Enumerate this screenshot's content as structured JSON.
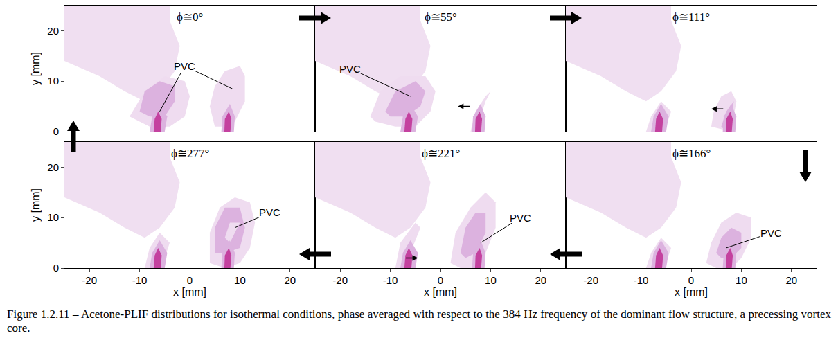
{
  "chart_data": {
    "type": "contour",
    "xlabel": "x [mm]",
    "ylabel": "y [mm]",
    "xlim": [
      -25,
      25
    ],
    "ylim": [
      0,
      25
    ],
    "xticks": [
      -20,
      -10,
      0,
      10,
      20
    ],
    "yticks": [
      0,
      10,
      20
    ],
    "caption": "Figure 1.2.11 – Acetone-PLIF distributions for isothermal conditions, phase averaged with respect to the 384 Hz frequency of the dominant flow structure, a precessing vortex core.",
    "background_regions": [
      {
        "color": "#f0dff1",
        "x": [
          -25,
          -4,
          -4,
          -2,
          -3,
          -6,
          -9,
          -13,
          -18,
          -25
        ],
        "y": [
          25,
          25,
          22,
          17,
          12,
          8,
          6,
          8,
          11,
          14
        ]
      }
    ],
    "nozzle_regions": [
      {
        "color": "#dcb2df",
        "x": [
          -8,
          -5,
          -4.5,
          -6,
          -7.5
        ],
        "y": [
          0,
          0,
          3,
          5.5,
          3
        ]
      },
      {
        "color": "#dcb2df",
        "x": [
          6.3,
          8.8,
          9,
          8,
          6.5
        ],
        "y": [
          0,
          0,
          3,
          5.5,
          3
        ]
      },
      {
        "color": "#c4419f",
        "x": [
          -7.2,
          -5.8,
          -5.6,
          -6.3,
          -7.0
        ],
        "y": [
          0,
          0,
          2.5,
          4,
          2.5
        ]
      },
      {
        "color": "#c4419f",
        "x": [
          6.9,
          8.1,
          8.3,
          7.8,
          7.0
        ],
        "y": [
          0,
          0,
          2.5,
          4,
          2.5
        ]
      }
    ],
    "panels": [
      {
        "title": "ϕ≅0°",
        "regions": [
          {
            "color": "#efdcf0",
            "x": [
              -12,
              -9,
              -5,
              -1,
              0,
              -1,
              -4,
              -8,
              -12
            ],
            "y": [
              3,
              8,
              11,
              10,
              7,
              3,
              1,
              1,
              3
            ]
          },
          {
            "color": "#efdcf0",
            "x": [
              5,
              4,
              5,
              7,
              10,
              11,
              11,
              9,
              7
            ],
            "y": [
              1,
              5,
              9,
              12,
              13,
              11,
              6,
              2,
              1
            ]
          },
          {
            "color": "#dcb2df",
            "x": [
              -10,
              -9,
              -6,
              -3,
              -3,
              -5,
              -8
            ],
            "y": [
              4,
              8,
              10,
              9,
              6,
              3,
              3
            ]
          }
        ],
        "labels": [
          {
            "text": "PVC",
            "x": -1,
            "y": 13,
            "points": [
              [
                -6,
                4
              ],
              [
                8.5,
                8.5
              ]
            ]
          }
        ],
        "arrows": []
      },
      {
        "title": "ϕ≅55°",
        "regions": [
          {
            "color": "#efdcf0",
            "x": [
              -14,
              -12,
              -8,
              -3,
              -1,
              -2,
              -5,
              -9,
              -13
            ],
            "y": [
              3,
              8,
              11,
              11,
              8,
              4,
              1,
              1,
              2
            ]
          },
          {
            "color": "#dcb2df",
            "x": [
              -11,
              -9,
              -5,
              -3,
              -4,
              -7,
              -10
            ],
            "y": [
              4,
              8,
              10,
              8,
              5,
              3,
              3
            ]
          },
          {
            "color": "#efdcf0",
            "x": [
              6,
              7,
              9,
              10,
              9,
              8,
              7
            ],
            "y": [
              0,
              4,
              7,
              8,
              6,
              3,
              0
            ]
          }
        ],
        "labels": [
          {
            "text": "PVC",
            "x": -18,
            "y": 12.5,
            "points": [
              [
                -6,
                7
              ]
            ]
          }
        ],
        "arrows": [
          {
            "x": 3.5,
            "y": 5,
            "direction": "left"
          }
        ]
      },
      {
        "title": "ϕ≅111°",
        "regions": [
          {
            "color": "#efdcf0",
            "x": [
              -9,
              -8,
              -6,
              -4,
              -5,
              -7
            ],
            "y": [
              0,
              3,
              6,
              4,
              1,
              0
            ]
          },
          {
            "color": "#efdcf0",
            "x": [
              4,
              4.5,
              6,
              8,
              9,
              8.5,
              8
            ],
            "y": [
              1,
              4,
              7,
              8,
              6,
              3,
              0
            ]
          },
          {
            "color": "#dcb2df",
            "x": [
              6,
              7,
              8.5,
              8,
              7
            ],
            "y": [
              1,
              4,
              6,
              3,
              0
            ]
          }
        ],
        "labels": [],
        "arrows": [
          {
            "x": 4,
            "y": 4.5,
            "direction": "left"
          }
        ]
      },
      {
        "title": "ϕ≅277°",
        "regions": [
          {
            "color": "#efdcf0",
            "x": [
              -9,
              -8,
              -6,
              -4,
              -5,
              -7
            ],
            "y": [
              0,
              4,
              7,
              5,
              2,
              0
            ]
          },
          {
            "color": "#efdcf0",
            "x": [
              4,
              4,
              6,
              9,
              12,
              13,
              12,
              10,
              7
            ],
            "y": [
              1,
              7,
              12,
              14,
              13,
              9,
              4,
              1,
              0
            ]
          },
          {
            "color": "#dcb2df",
            "x": [
              5,
              5,
              7,
              10,
              11,
              10,
              7
            ],
            "y": [
              3,
              8,
              12,
              12,
              8,
              4,
              3
            ]
          },
          {
            "color": "#efdcf0",
            "x": [
              7,
              8,
              10,
              9,
              8
            ],
            "y": [
              6,
              9,
              9,
              7,
              5
            ]
          }
        ],
        "labels": [
          {
            "text": "PVC",
            "x": 16,
            "y": 11,
            "points": [
              [
                9,
                8
              ]
            ]
          }
        ],
        "arrows": []
      },
      {
        "title": "ϕ≅221°",
        "regions": [
          {
            "color": "#efdcf0",
            "x": [
              -9,
              -8,
              -5,
              -4,
              -6,
              -7
            ],
            "y": [
              0,
              5,
              9,
              8,
              3,
              0
            ]
          },
          {
            "color": "#efdcf0",
            "x": [
              2,
              3,
              6,
              9,
              11,
              11,
              9,
              7,
              4
            ],
            "y": [
              1,
              7,
              12,
              15,
              13,
              8,
              3,
              0,
              0
            ]
          },
          {
            "color": "#dcb2df",
            "x": [
              4,
              5,
              7,
              9,
              9,
              7,
              5
            ],
            "y": [
              3,
              8,
              11,
              11,
              7,
              3,
              2
            ]
          }
        ],
        "labels": [
          {
            "text": "PVC",
            "x": 16,
            "y": 10,
            "points": [
              [
                8,
                5
              ]
            ]
          }
        ],
        "arrows": [
          {
            "x": -4.5,
            "y": 2,
            "direction": "right"
          }
        ]
      },
      {
        "title": "ϕ≅166°",
        "regions": [
          {
            "color": "#efdcf0",
            "x": [
              -9,
              -8,
              -6,
              -4,
              -5,
              -7
            ],
            "y": [
              0,
              3,
              6,
              4,
              1,
              0
            ]
          },
          {
            "color": "#efdcf0",
            "x": [
              3,
              4,
              6,
              9,
              12,
              12,
              10,
              8,
              5
            ],
            "y": [
              1,
              5,
              9,
              11,
              10,
              6,
              2,
              0,
              0
            ]
          },
          {
            "color": "#dcb2df",
            "x": [
              5,
              6,
              8,
              10,
              10,
              8,
              6
            ],
            "y": [
              3,
              6,
              8,
              7,
              4,
              2,
              2
            ]
          }
        ],
        "labels": [
          {
            "text": "PVC",
            "x": 16,
            "y": 7,
            "points": [
              [
                7,
                4
              ]
            ]
          }
        ],
        "arrows": []
      }
    ]
  }
}
